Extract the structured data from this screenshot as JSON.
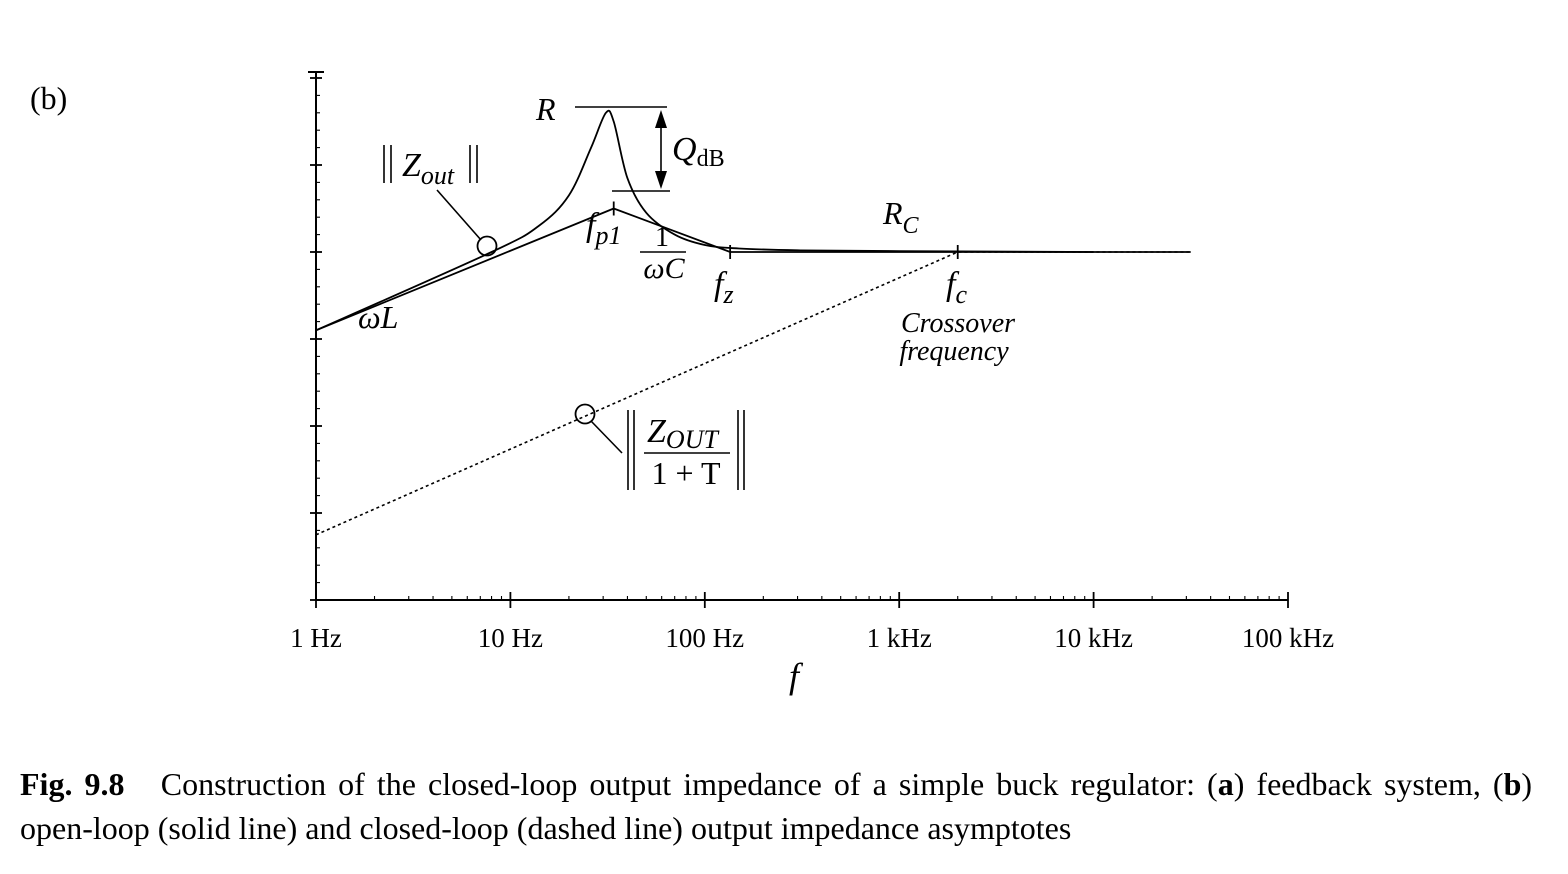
{
  "panel_label": "(b)",
  "caption": {
    "fig_number": "Fig. 9.8",
    "part1": "Construction of the closed-loop output impedance of a simple buck regulator: (",
    "a_letter": "a",
    "part2": ") feedback system, (",
    "b_letter": "b",
    "part3": ") open-loop (solid line) and closed-loop (dashed line) output impedance asymptotes"
  },
  "chart_data": {
    "type": "line",
    "x_scale": "log",
    "xlim": [
      1,
      100000
    ],
    "ylim": [
      0,
      6
    ],
    "xlabel": "f",
    "x_tick_labels": [
      "1 Hz",
      "10 Hz",
      "100 Hz",
      "1 kHz",
      "10 kHz",
      "100 kHz"
    ],
    "x_tick_values": [
      1,
      10,
      100,
      1000,
      10000,
      100000
    ],
    "grid": false,
    "series": [
      {
        "style": "solid-asymptote",
        "x": [
          1,
          34,
          135,
          31600
        ],
        "y": [
          3.1,
          4.5,
          4.0,
          4.0
        ]
      },
      {
        "style": "solid-curve",
        "x": [
          1,
          8,
          14,
          20,
          26,
          31,
          34,
          40,
          50,
          70,
          100,
          150,
          300,
          1000,
          10000
        ],
        "y": [
          3.1,
          4.0,
          4.3,
          4.65,
          5.2,
          5.6,
          5.5,
          4.85,
          4.45,
          4.2,
          4.08,
          4.04,
          4.02,
          4.01,
          4.0
        ]
      },
      {
        "style": "dashed",
        "x": [
          1,
          2000,
          31600
        ],
        "y": [
          0.75,
          4.0,
          4.0
        ]
      }
    ],
    "annotations": {
      "R": "R",
      "Q": "Q",
      "Q_sub": "dB",
      "zout_open_main": "Z",
      "zout_open_sub": "out",
      "fp1_main": "f",
      "fp1_sub": "p1",
      "inv_wc_num": "1",
      "inv_wc_den": "ωC",
      "fz_main": "f",
      "fz_sub": "z",
      "rc_main": "R",
      "rc_sub": "C",
      "fc_main": "f",
      "fc_sub": "c",
      "crossover_line1": "Crossover",
      "crossover_line2": "frequency",
      "wL": "ωL",
      "zout_closed_main": "Z",
      "zout_closed_sub": "OUT",
      "zout_closed_den": "1 + T"
    }
  }
}
